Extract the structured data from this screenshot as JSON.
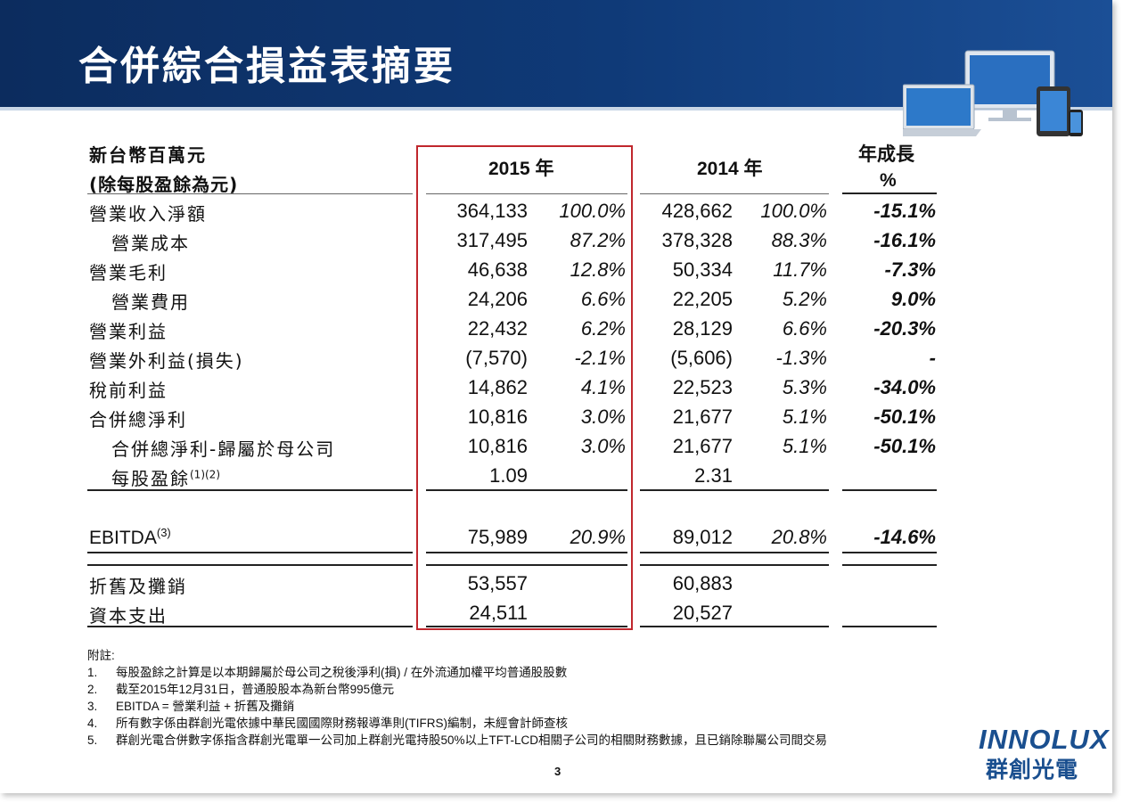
{
  "header": {
    "title": "合併綜合損益表摘要"
  },
  "table": {
    "unit_line1": "新台幣百萬元",
    "unit_line2": "(除每股盈餘為元)",
    "col_2015": "2015 年",
    "col_2014": "2014 年",
    "col_yoy_line1": "年成長",
    "col_yoy_line2": "%",
    "rows": [
      {
        "label": "營業收入淨額",
        "v15": "364,133",
        "p15": "100.0%",
        "v14": "428,662",
        "p14": "100.0%",
        "yoy": "-15.1%"
      },
      {
        "label": "營業成本",
        "v15": "317,495",
        "p15": "87.2%",
        "v14": "378,328",
        "p14": "88.3%",
        "yoy": "-16.1%"
      },
      {
        "label": "營業毛利",
        "v15": "46,638",
        "p15": "12.8%",
        "v14": "50,334",
        "p14": "11.7%",
        "yoy": "-7.3%"
      },
      {
        "label": "營業費用",
        "v15": "24,206",
        "p15": "6.6%",
        "v14": "22,205",
        "p14": "5.2%",
        "yoy": "9.0%"
      },
      {
        "label": "營業利益",
        "v15": "22,432",
        "p15": "6.2%",
        "v14": "28,129",
        "p14": "6.6%",
        "yoy": "-20.3%"
      },
      {
        "label": "營業外利益(損失)",
        "v15": "(7,570)",
        "p15": "-2.1%",
        "v14": "(5,606)",
        "p14": "-1.3%",
        "yoy": "-"
      },
      {
        "label": "稅前利益",
        "v15": "14,862",
        "p15": "4.1%",
        "v14": "22,523",
        "p14": "5.3%",
        "yoy": "-34.0%"
      },
      {
        "label": "合併總淨利",
        "v15": "10,816",
        "p15": "3.0%",
        "v14": "21,677",
        "p14": "5.1%",
        "yoy": "-50.1%"
      },
      {
        "label": "合併總淨利-歸屬於母公司",
        "v15": "10,816",
        "p15": "3.0%",
        "v14": "21,677",
        "p14": "5.1%",
        "yoy": "-50.1%"
      },
      {
        "label": "每股盈餘",
        "label_sup": "(1)(2)",
        "v15": "1.09",
        "p15": "",
        "v14": "2.31",
        "p14": "",
        "yoy": ""
      }
    ],
    "ebitda": {
      "label": "EBITDA",
      "label_sup": "(3)",
      "v15": "75,989",
      "p15": "20.9%",
      "v14": "89,012",
      "p14": "20.8%",
      "yoy": "-14.6%"
    },
    "extra_rows": [
      {
        "label": "折舊及攤銷",
        "v15": "53,557",
        "v14": "60,883"
      },
      {
        "label": "資本支出",
        "v15": "24,511",
        "v14": "20,527"
      }
    ]
  },
  "notes": {
    "heading": "附註:",
    "items": [
      {
        "idx": "1.",
        "text": "每股盈餘之計算是以本期歸屬於母公司之稅後淨利(損) / 在外流通加權平均普通股股數"
      },
      {
        "idx": "2.",
        "text": "截至2015年12月31日，普通股股本為新台幣995億元"
      },
      {
        "idx": "3.",
        "text": "EBITDA = 營業利益 + 折舊及攤銷"
      },
      {
        "idx": "4.",
        "text": "所有數字係由群創光電依據中華民國國際財務報導準則(TIFRS)編制，未經會計師查核"
      },
      {
        "idx": "5.",
        "text": "群創光電合併數字係指含群創光電單一公司加上群創光電持股50%以上TFT-LCD相關子公司的相關財務數據，且已銷除聯屬公司間交易"
      }
    ]
  },
  "footer": {
    "page_number": "3"
  },
  "logo": {
    "en": "INNOLUX",
    "zh": "群創光電"
  }
}
